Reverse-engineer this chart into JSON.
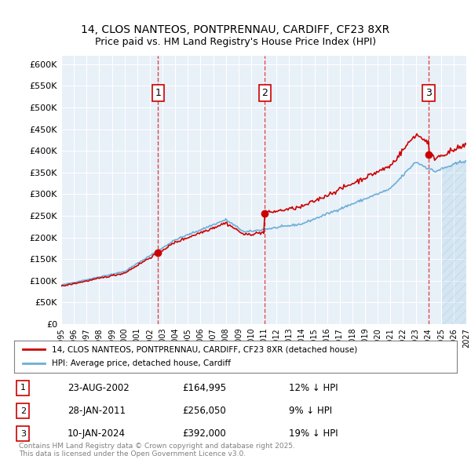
{
  "title_line1": "14, CLOS NANTEOS, PONTPRENNAU, CARDIFF, CF23 8XR",
  "title_line2": "Price paid vs. HM Land Registry's House Price Index (HPI)",
  "legend_line1": "14, CLOS NANTEOS, PONTPRENNAU, CARDIFF, CF23 8XR (detached house)",
  "legend_line2": "HPI: Average price, detached house, Cardiff",
  "sales": [
    {
      "date_num": 2002.65,
      "price": 164995,
      "label": "1"
    },
    {
      "date_num": 2011.08,
      "price": 256050,
      "label": "2"
    },
    {
      "date_num": 2024.03,
      "price": 392000,
      "label": "3"
    }
  ],
  "sale_labels": [
    {
      "num": "1",
      "date": "23-AUG-2002",
      "price": "£164,995",
      "hpi": "12% ↓ HPI"
    },
    {
      "num": "2",
      "date": "28-JAN-2011",
      "price": "£256,050",
      "hpi": "9% ↓ HPI"
    },
    {
      "num": "3",
      "date": "10-JAN-2024",
      "price": "£392,000",
      "hpi": "19% ↓ HPI"
    }
  ],
  "xmin": 1995.0,
  "xmax": 2027.0,
  "ymin": 0,
  "ymax": 620000,
  "yticks": [
    0,
    50000,
    100000,
    150000,
    200000,
    250000,
    300000,
    350000,
    400000,
    450000,
    500000,
    550000,
    600000
  ],
  "ytick_labels": [
    "£0",
    "£50K",
    "£100K",
    "£150K",
    "£200K",
    "£250K",
    "£300K",
    "£350K",
    "£400K",
    "£450K",
    "£500K",
    "£550K",
    "£600K"
  ],
  "xticks": [
    1995,
    1996,
    1997,
    1998,
    1999,
    2000,
    2001,
    2002,
    2003,
    2004,
    2005,
    2006,
    2007,
    2008,
    2009,
    2010,
    2011,
    2012,
    2013,
    2014,
    2015,
    2016,
    2017,
    2018,
    2019,
    2020,
    2021,
    2022,
    2023,
    2024,
    2025,
    2026,
    2027
  ],
  "bg_color": "#e8f0f8",
  "line_color_hpi": "#6baed6",
  "line_color_sales": "#cc0000",
  "vline_color": "#cc0000",
  "sale_marker_color": "#cc0000",
  "hatch_color": "#6baed6",
  "footnote": "Contains HM Land Registry data © Crown copyright and database right 2025.\nThis data is licensed under the Open Government Licence v3.0."
}
